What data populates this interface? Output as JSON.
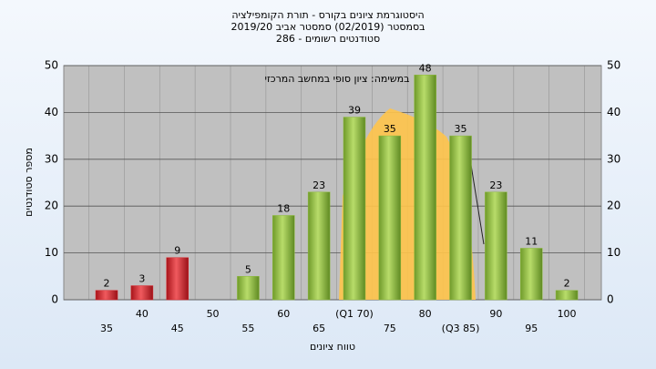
{
  "chart_data": {
    "type": "bar",
    "title": [
      "היסטוגרמת ציונים בקורס - תורת הקומפילציה",
      "בסמסטר  (02/2019)  סמסטר אביב 2019/20",
      "סטודנטים רשומים - 286"
    ],
    "annotation": "במשימה: ציון סופי במחשב המרכזי",
    "x_label": "טווח ציונים",
    "y_label": "מספר סטודנטים",
    "categories": [
      "35",
      "40",
      "45",
      "50",
      "55",
      "60",
      "65",
      "(Q1 70)",
      "75",
      "80",
      "(Q3 85)",
      "90",
      "95",
      "100"
    ],
    "values": [
      2,
      3,
      9,
      null,
      5,
      18,
      23,
      39,
      35,
      48,
      35,
      23,
      11,
      2
    ],
    "colors": [
      "#d9252b",
      "#d9252b",
      "#d9252b",
      "#8dbb3c",
      "#8dbb3c",
      "#8dbb3c",
      "#8dbb3c",
      "#8dbb3c",
      "#8dbb3c",
      "#8dbb3c",
      "#8dbb3c",
      "#8dbb3c",
      "#8dbb3c",
      "#8dbb3c"
    ],
    "ylim": [
      0,
      50
    ],
    "yticks": [
      0,
      10,
      20,
      30,
      40,
      50
    ],
    "grid": true
  }
}
